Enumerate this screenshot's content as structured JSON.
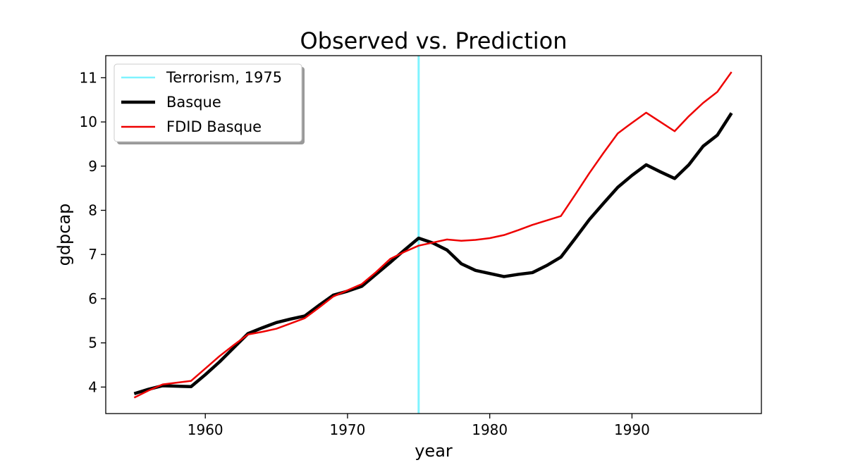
{
  "chart_data": {
    "type": "line",
    "title": "Observed vs. Prediction",
    "xlabel": "year",
    "ylabel": "gdpcap",
    "xlim": [
      1953,
      1999.1
    ],
    "ylim": [
      3.4,
      11.5
    ],
    "xticks": [
      1960,
      1970,
      1980,
      1990
    ],
    "yticks": [
      4,
      5,
      6,
      7,
      8,
      9,
      10,
      11
    ],
    "grid": false,
    "legend_position": "upper-left",
    "vline": {
      "x": 1975,
      "label": "Terrorism, 1975",
      "color": "#7ff3ff"
    },
    "x": [
      1955,
      1956,
      1957,
      1958,
      1959,
      1960,
      1961,
      1962,
      1963,
      1964,
      1965,
      1966,
      1967,
      1968,
      1969,
      1970,
      1971,
      1972,
      1973,
      1974,
      1975,
      1976,
      1977,
      1978,
      1979,
      1980,
      1981,
      1982,
      1983,
      1984,
      1985,
      1986,
      1987,
      1988,
      1989,
      1990,
      1991,
      1992,
      1993,
      1994,
      1995,
      1996,
      1997
    ],
    "series": [
      {
        "name": "Basque",
        "color": "#000000",
        "values": [
          3.85,
          3.95,
          4.03,
          4.02,
          4.01,
          4.28,
          4.57,
          4.89,
          5.21,
          5.34,
          5.46,
          5.54,
          5.61,
          5.85,
          6.08,
          6.17,
          6.28,
          6.55,
          6.82,
          7.1,
          7.37,
          7.26,
          7.1,
          6.79,
          6.64,
          6.57,
          6.5,
          6.55,
          6.59,
          6.75,
          6.94,
          7.36,
          7.79,
          8.16,
          8.52,
          8.79,
          9.03,
          8.87,
          8.72,
          9.03,
          9.45,
          9.7,
          10.2
        ]
      },
      {
        "name": "FDID Basque",
        "color": "#ee0000",
        "values": [
          3.76,
          3.92,
          4.06,
          4.1,
          4.14,
          4.42,
          4.7,
          4.95,
          5.19,
          5.25,
          5.32,
          5.44,
          5.56,
          5.8,
          6.05,
          6.19,
          6.33,
          6.6,
          6.9,
          7.06,
          7.2,
          7.27,
          7.34,
          7.31,
          7.33,
          7.37,
          7.44,
          7.55,
          7.67,
          7.77,
          7.87,
          8.35,
          8.84,
          9.3,
          9.74,
          9.98,
          10.21,
          10.0,
          9.79,
          10.13,
          10.43,
          10.68,
          11.13
        ]
      }
    ]
  }
}
